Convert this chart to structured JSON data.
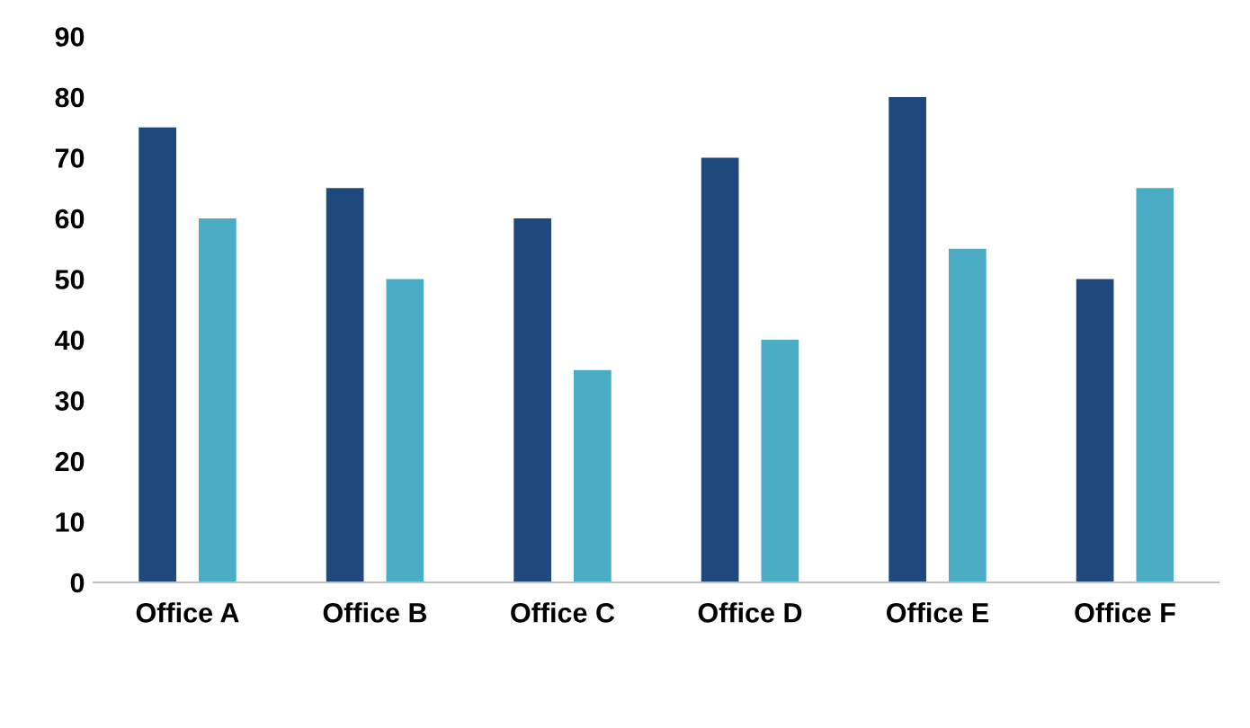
{
  "chart_data": {
    "type": "bar",
    "categories": [
      "Office A",
      "Office B",
      "Office C",
      "Office D",
      "Office E",
      "Office F"
    ],
    "series": [
      {
        "color": "#1f497d",
        "values": [
          75,
          65,
          60,
          70,
          80,
          50
        ]
      },
      {
        "color": "#4bacc6",
        "values": [
          60,
          50,
          35,
          40,
          55,
          65
        ]
      }
    ],
    "ylim": [
      0,
      90
    ],
    "yticks": [
      0,
      10,
      20,
      30,
      40,
      50,
      60,
      70,
      80,
      90
    ],
    "grid": false
  }
}
